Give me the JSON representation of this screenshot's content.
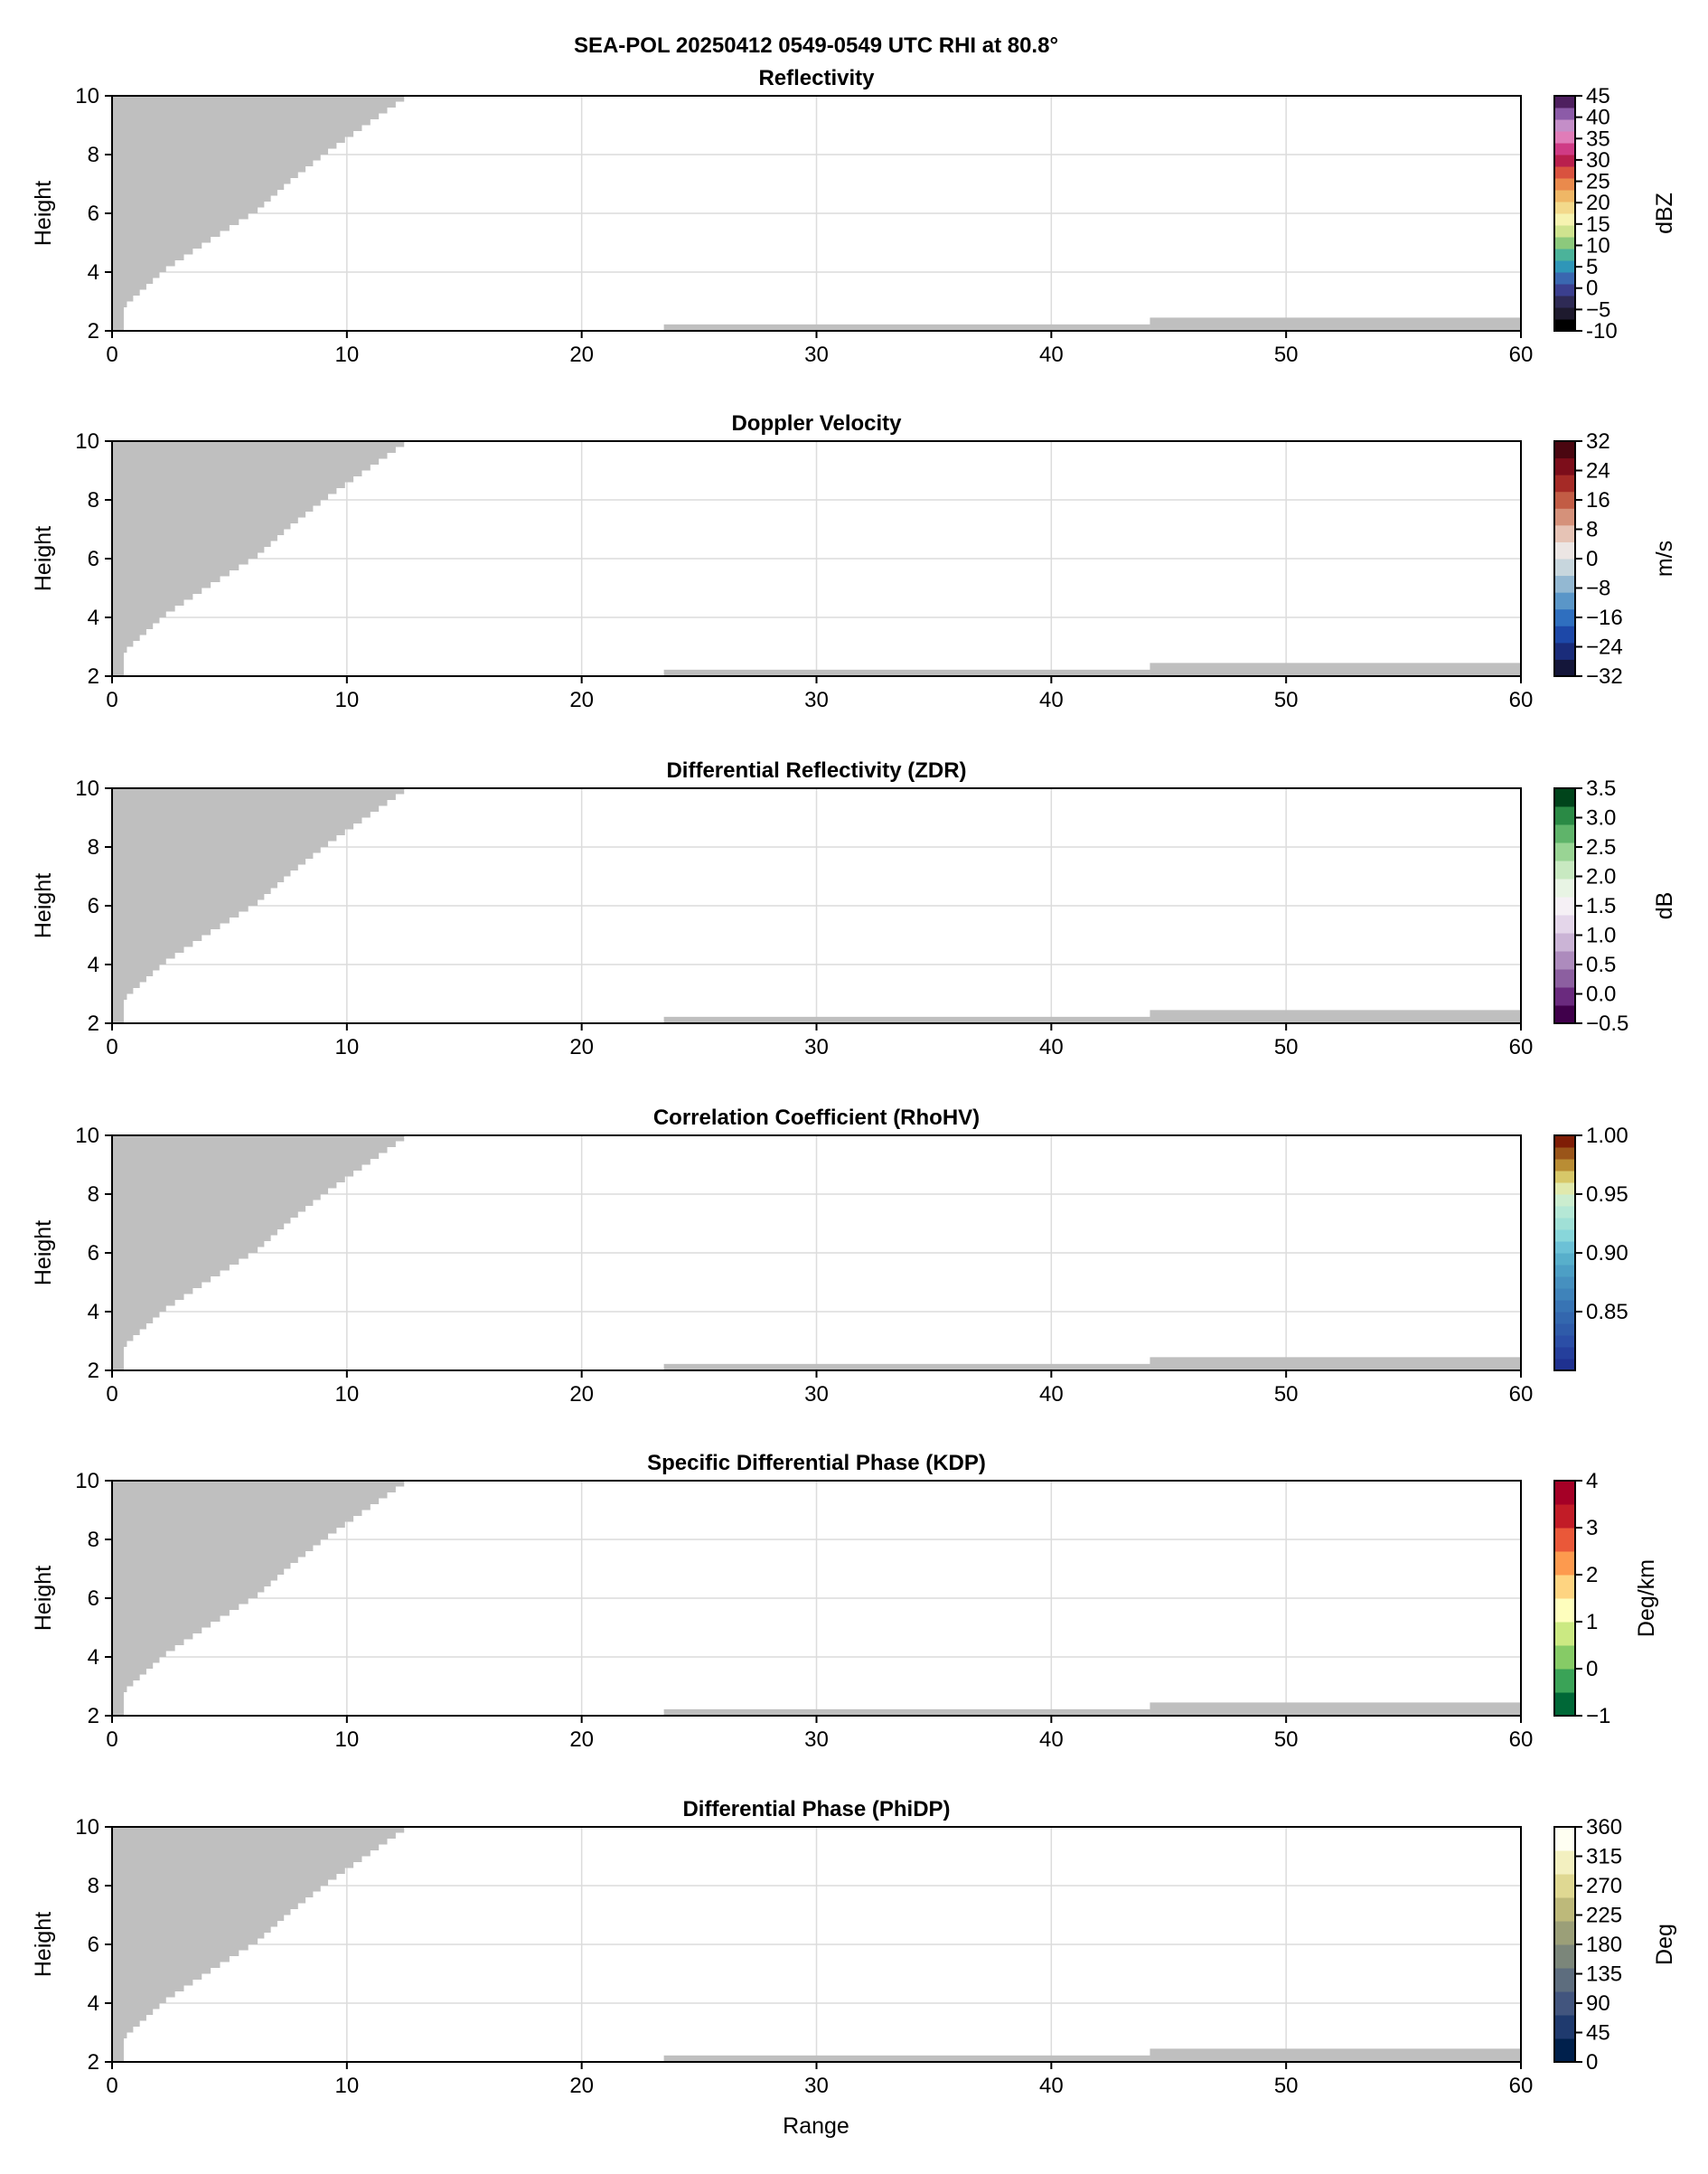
{
  "chart_data": {
    "suptitle": "SEA-POL 20250412 0549-0549 UTC RHI at 80.8°",
    "xlabel": "Range",
    "panels": [
      {
        "type": "heatmap",
        "title": "Reflectivity",
        "ylabel": "Height",
        "xlim": [
          0,
          60
        ],
        "ylim": [
          2,
          10
        ],
        "xticks": [
          "0",
          "10",
          "20",
          "30",
          "40",
          "50",
          "60"
        ],
        "yticks": [
          "2",
          "4",
          "6",
          "8",
          "10"
        ],
        "colorbar": {
          "label": "dBZ",
          "range": [
            -10,
            45
          ],
          "ticks": [
            "-10",
            "−5",
            "0",
            "5",
            "10",
            "15",
            "20",
            "25",
            "30",
            "35",
            "40",
            "45"
          ],
          "colors": [
            "#000000",
            "#1e1a2e",
            "#2e2a55",
            "#3b3f8f",
            "#3a67b0",
            "#2f96b8",
            "#4bb39a",
            "#8cc97c",
            "#cfe38f",
            "#f6f3b0",
            "#f3d98b",
            "#efb766",
            "#ea8a4c",
            "#d9523f",
            "#b91f4d",
            "#cf3b85",
            "#e07cb8",
            "#c48ec8",
            "#8c5ba8",
            "#4e1f5f"
          ]
        }
      },
      {
        "type": "heatmap",
        "title": "Doppler Velocity",
        "ylabel": "Height",
        "xlim": [
          0,
          60
        ],
        "ylim": [
          2,
          10
        ],
        "xticks": [
          "0",
          "10",
          "20",
          "30",
          "40",
          "50",
          "60"
        ],
        "yticks": [
          "2",
          "4",
          "6",
          "8",
          "10"
        ],
        "colorbar": {
          "label": "m/s",
          "range": [
            -32,
            32
          ],
          "ticks": [
            "−32",
            "−24",
            "−16",
            "−8",
            "0",
            "8",
            "16",
            "24",
            "32"
          ],
          "colors": [
            "#14163a",
            "#1a2c7a",
            "#1d48a8",
            "#2f6fbf",
            "#5a96c8",
            "#93b8d2",
            "#c7d6dd",
            "#ece6e4",
            "#e6c3b5",
            "#d5917a",
            "#c25c45",
            "#a52a26",
            "#7c0d1a",
            "#4a0610"
          ]
        }
      },
      {
        "type": "heatmap",
        "title": "Differential Reflectivity (ZDR)",
        "ylabel": "Height",
        "xlim": [
          0,
          60
        ],
        "ylim": [
          2,
          10
        ],
        "xticks": [
          "0",
          "10",
          "20",
          "30",
          "40",
          "50",
          "60"
        ],
        "yticks": [
          "2",
          "4",
          "6",
          "8",
          "10"
        ],
        "colorbar": {
          "label": "dB",
          "range": [
            -0.5,
            3.5
          ],
          "ticks": [
            "−0.5",
            "0.0",
            "0.5",
            "1.0",
            "1.5",
            "2.0",
            "2.5",
            "3.0",
            "3.5"
          ],
          "colors": [
            "#40004b",
            "#6a2a7e",
            "#8c5fa0",
            "#ad8bbd",
            "#cbb4d6",
            "#e4d6ea",
            "#f5f0f5",
            "#e8f4e4",
            "#c8e9c1",
            "#99d494",
            "#5fb46a",
            "#2a8a45",
            "#00441b"
          ]
        }
      },
      {
        "type": "heatmap",
        "title": "Correlation Coefficient (RhoHV)",
        "ylabel": "Height",
        "xlim": [
          0,
          60
        ],
        "ylim": [
          2,
          10
        ],
        "xticks": [
          "0",
          "10",
          "20",
          "30",
          "40",
          "50",
          "60"
        ],
        "yticks": [
          "2",
          "4",
          "6",
          "8",
          "10"
        ],
        "colorbar": {
          "label": "",
          "range": [
            0.8,
            1.0
          ],
          "ticks": [
            "0.85",
            "0.90",
            "0.95",
            "1.00"
          ],
          "colors": [
            "#1f3190",
            "#253f9c",
            "#2b4ea6",
            "#2f5ba9",
            "#3367ae",
            "#3874b4",
            "#3f83ba",
            "#4690bf",
            "#4d9fc5",
            "#58afcb",
            "#6cc1d6",
            "#88d6da",
            "#a0e0d6",
            "#b5e8d6",
            "#cbedcf",
            "#e0e9ad",
            "#d7c869",
            "#b98d34",
            "#9a5519",
            "#7f1d06"
          ]
        }
      },
      {
        "type": "heatmap",
        "title": "Specific Differential Phase (KDP)",
        "ylabel": "Height",
        "xlim": [
          0,
          60
        ],
        "ylim": [
          2,
          10
        ],
        "xticks": [
          "0",
          "10",
          "20",
          "30",
          "40",
          "50",
          "60"
        ],
        "yticks": [
          "2",
          "4",
          "6",
          "8",
          "10"
        ],
        "colorbar": {
          "label": "Deg/km",
          "range": [
            -1,
            4
          ],
          "ticks": [
            "−1",
            "0",
            "1",
            "2",
            "3",
            "4"
          ],
          "colors": [
            "#006837",
            "#3aa357",
            "#86cb66",
            "#cbe982",
            "#fefebd",
            "#fed481",
            "#fd9a4e",
            "#ea5839",
            "#c21c27",
            "#a50026"
          ]
        }
      },
      {
        "type": "heatmap",
        "title": "Differential Phase (PhiDP)",
        "ylabel": "Height",
        "xlim": [
          0,
          60
        ],
        "ylim": [
          2,
          10
        ],
        "xticks": [
          "0",
          "10",
          "20",
          "30",
          "40",
          "50",
          "60"
        ],
        "yticks": [
          "2",
          "4",
          "6",
          "8",
          "10"
        ],
        "colorbar": {
          "label": "Deg",
          "range": [
            0,
            360
          ],
          "ticks": [
            "0",
            "45",
            "90",
            "135",
            "180",
            "225",
            "270",
            "315",
            "360"
          ],
          "colors": [
            "#00204c",
            "#1f3a6e",
            "#42557e",
            "#5d6d7e",
            "#7b867a",
            "#9b9f78",
            "#bdb97a",
            "#dfd892",
            "#f3f0c0",
            "#fffff2"
          ]
        }
      }
    ],
    "masked_color": "#bfbfbf",
    "masked_regions": {
      "upper_left_edge": [
        [
          0.5,
          2.0
        ],
        [
          0.5,
          2.7
        ],
        [
          0.9,
          3.0
        ],
        [
          1.6,
          3.5
        ],
        [
          2.3,
          4.0
        ],
        [
          4.2,
          5.0
        ],
        [
          6.2,
          6.0
        ],
        [
          7.6,
          7.0
        ],
        [
          9.2,
          8.0
        ],
        [
          11.0,
          9.0
        ],
        [
          12.8,
          10.0
        ]
      ],
      "near_ground": [
        {
          "range": [
            23.5,
            44.2
          ],
          "top": 2.22
        },
        {
          "range": [
            44.2,
            60
          ],
          "top": 2.45
        }
      ]
    }
  }
}
